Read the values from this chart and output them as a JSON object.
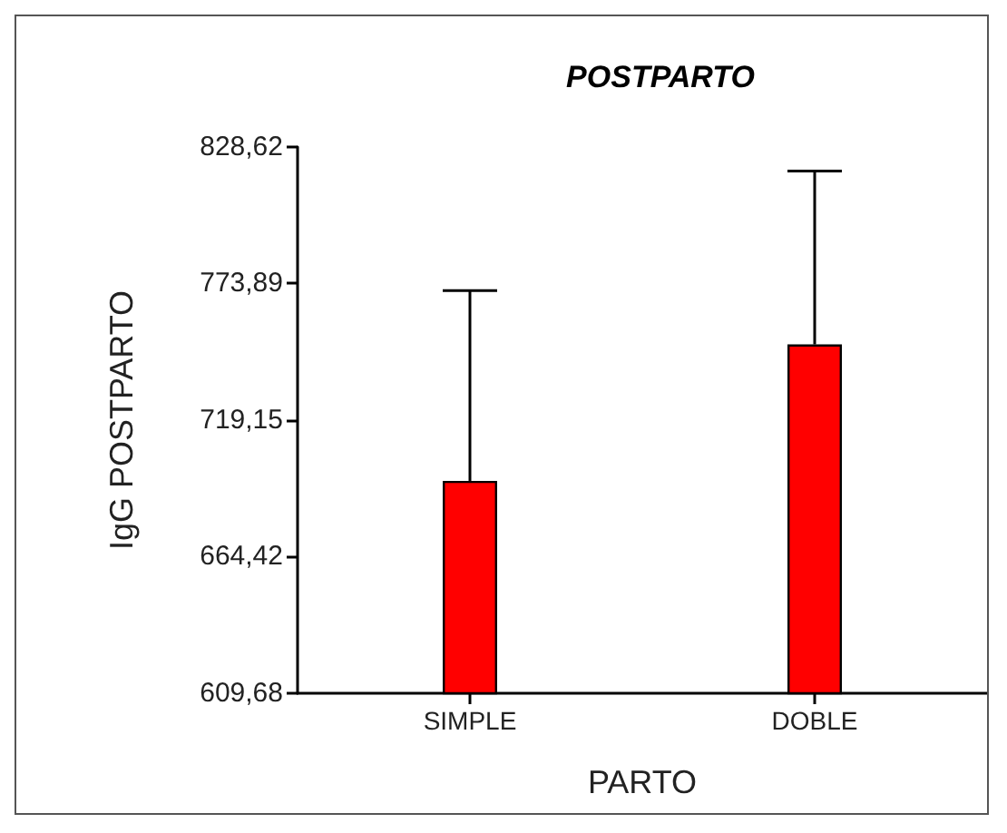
{
  "chart_data": {
    "type": "bar",
    "title": "POSTPARTO",
    "xlabel": "PARTO",
    "ylabel": "IgG POSTPARTO",
    "categories": [
      "SIMPLE",
      "DOBLE"
    ],
    "values": [
      694.8,
      749.5
    ],
    "color": "#ff0000",
    "errors": [
      [
        694.8,
        771.1
      ],
      [
        749.5,
        819.0
      ]
    ],
    "ylim": [
      609.68,
      828.62
    ],
    "yticks": [
      {
        "value": 609.68,
        "label": "609,68"
      },
      {
        "value": 664.42,
        "label": "664,42"
      },
      {
        "value": 719.15,
        "label": "719,15"
      },
      {
        "value": 773.89,
        "label": "773,89"
      },
      {
        "value": 828.62,
        "label": "828,62"
      }
    ],
    "grid": false
  }
}
